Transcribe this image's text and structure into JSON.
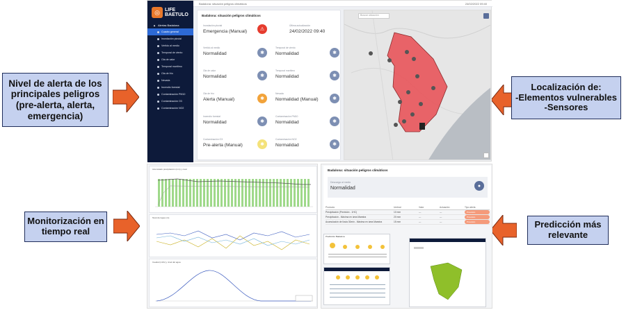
{
  "callouts": {
    "alert_levels": "Nivel de alerta de los principales peligros (pre-alerta, alerta, emergencia)",
    "localization": "Localización de:\n-Elementos vulnerables\n-Sensores",
    "monitoring": "Monitorización en tiempo real",
    "prediction": "Predicción más relevante"
  },
  "app": {
    "logo_line1": "LIFE",
    "logo_line2": "BAETULO",
    "url_text": "Badalona: situación peligros climáticos",
    "top_right": "24/02/2022 09:40",
    "sidebar": {
      "head": "Alertas Badalona",
      "items": [
        {
          "label": "Cuadro general",
          "active": true
        },
        {
          "label": "Inundación pluvial"
        },
        {
          "label": "Vertido al medio"
        },
        {
          "label": "Temporal de viento"
        },
        {
          "label": "Ola de calor"
        },
        {
          "label": "Temporal marítimo"
        },
        {
          "label": "Ola de frío"
        },
        {
          "label": "Nevada"
        },
        {
          "label": "Incendio forestal"
        },
        {
          "label": "Contaminación PM10"
        },
        {
          "label": "Contaminación O3"
        },
        {
          "label": "Contaminación NO2"
        }
      ]
    },
    "panel": {
      "title": "Badalona: situación peligros climáticos",
      "current_label": "Inundación pluvial",
      "current_value": "Emergencia (Manual)",
      "update_label": "Última actualización",
      "update_value": "24/02/2022 09:40",
      "cells": [
        {
          "label": "Vertido al medio",
          "value": "Normalidad",
          "color": "#7d8fb3"
        },
        {
          "label": "Temporal de viento",
          "value": "Normalidad",
          "color": "#7d8fb3"
        },
        {
          "label": "Ola de calor",
          "value": "Normalidad",
          "color": "#7d8fb3"
        },
        {
          "label": "Temporal marítimo",
          "value": "Normalidad",
          "color": "#7d8fb3"
        },
        {
          "label": "Ola de frío",
          "value": "Alerta (Manual)",
          "color": "#f2a33a"
        },
        {
          "label": "Nevada",
          "value": "Normalidad (Manual)",
          "color": "#7d8fb3"
        },
        {
          "label": "Incendio forestal",
          "value": "Normalidad",
          "color": "#7d8fb3"
        },
        {
          "label": "Contaminación PM10",
          "value": "Normalidad",
          "color": "#7d8fb3"
        },
        {
          "label": "Contaminación O3",
          "value": "Pre-alerta (Manual)",
          "color": "#f4e27a"
        },
        {
          "label": "Contaminación NO2",
          "value": "Normalidad",
          "color": "#7d8fb3"
        }
      ]
    },
    "map_search": "Buscar ubicación"
  },
  "bottom": {
    "chart1_title": "Acumulado precipitación (mm) y nivel",
    "chart2_title": "Nivel del agua (m)",
    "chart3_title": "Caudal (m3/s) y nivel del agua",
    "pred_title": "Badalona: situación peligros climáticos",
    "pred_label": "Descarga al medio",
    "pred_value": "Normalidad",
    "table": {
      "headers": [
        "Producto",
        "Umbral",
        "Valor",
        "Actuación",
        "Tipo alerta"
      ],
      "rows": [
        {
          "name": "Precipitación (Previsión - 1HC)",
          "u": "10 mm",
          "v": "---",
          "a": "---",
          "t": "Previsión"
        },
        {
          "name": "Precipitación - Máxima en área Maestra",
          "u": "20 mm",
          "v": "---",
          "a": "---",
          "t": "Previsión"
        },
        {
          "name": "Acumulación de lluvia 30min - Máxima en área Maestra",
          "u": "15 mm",
          "v": "---",
          "a": "---",
          "t": "Previsión"
        }
      ]
    },
    "thumb_label": "Predicción Badalona"
  },
  "colors": {
    "callout_bg": "#c5d1ef",
    "arrow": "#e8622a",
    "nav_bg": "#0d1a3a",
    "active": "#2d6ad6",
    "zone": "#e8545a",
    "emergency": "#e63c2e"
  }
}
